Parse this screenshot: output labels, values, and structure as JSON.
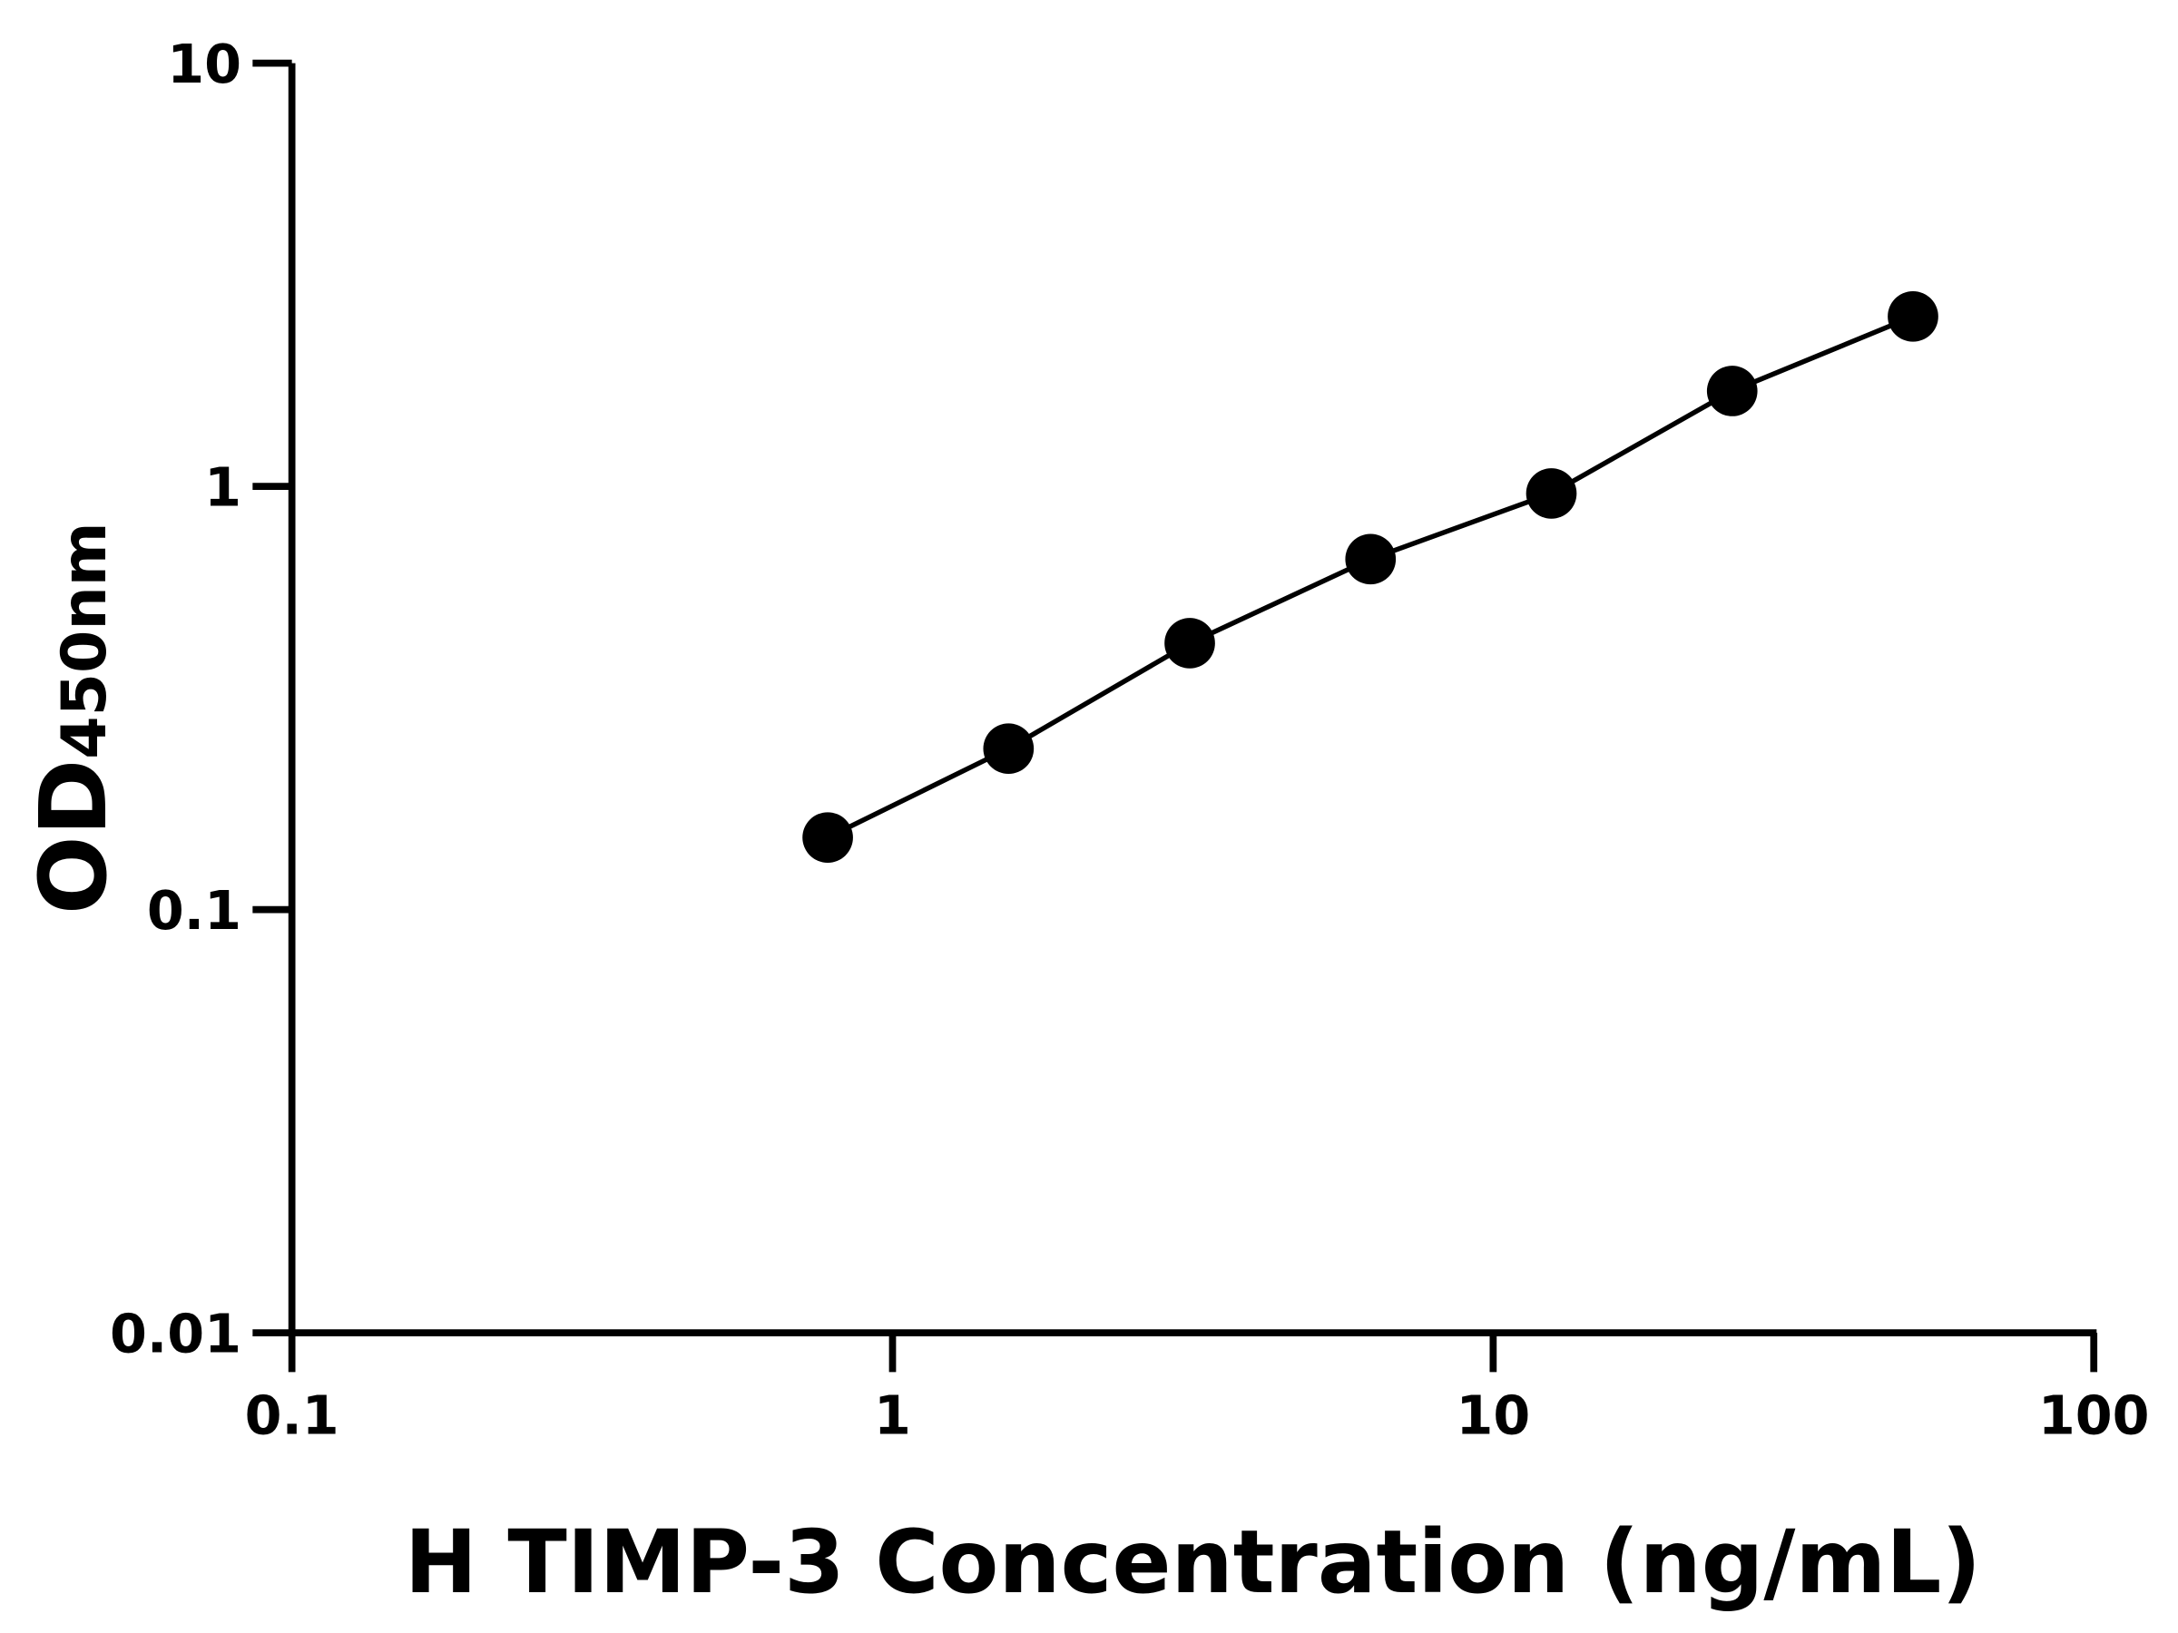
{
  "chart_data": {
    "type": "line",
    "title": "",
    "xlabel": "H TIMP-3 Concentration (ng/mL)",
    "ylabel_main": "OD",
    "ylabel_sub": "450nm",
    "x_scale": "log",
    "y_scale": "log",
    "xlim": [
      0.1,
      100
    ],
    "ylim": [
      0.01,
      10
    ],
    "x_ticks": [
      0.1,
      1,
      10,
      100
    ],
    "x_tick_labels": [
      "0.1",
      "1",
      "10",
      "100"
    ],
    "y_ticks": [
      0.01,
      0.1,
      1,
      10
    ],
    "y_tick_labels": [
      "0.01",
      "0.1",
      "1",
      "10"
    ],
    "grid": false,
    "legend": "none",
    "color": "#000000",
    "series": [
      {
        "x": [
          0.78,
          1.56,
          3.125,
          6.25,
          12.5,
          25,
          50
        ],
        "y": [
          0.148,
          0.24,
          0.426,
          0.673,
          0.962,
          1.68,
          2.52
        ]
      }
    ]
  }
}
